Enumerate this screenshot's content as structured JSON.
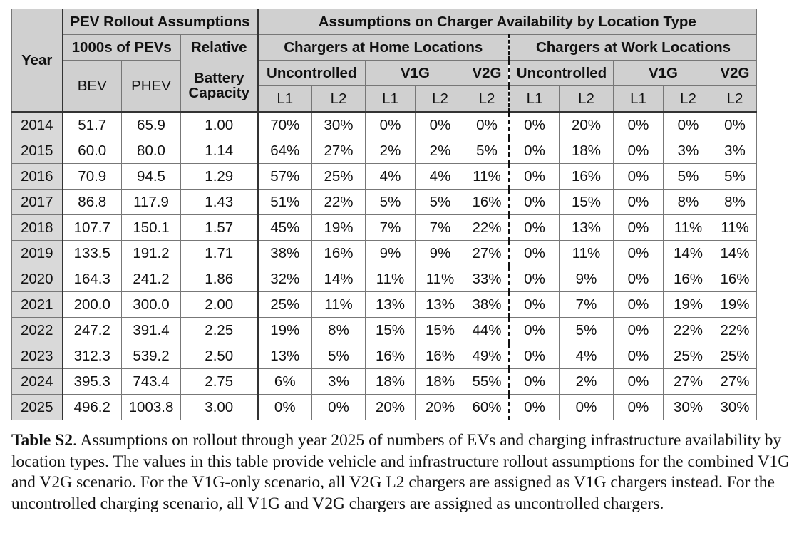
{
  "table": {
    "headers": {
      "year": "Year",
      "pev_group": "PEV Rollout Assumptions",
      "charger_group": "Assumptions on Charger Availability by Location Type",
      "thousands": "1000s of PEVs",
      "relative": "Relative",
      "battery": "Battery",
      "capacity": "Capacity",
      "bev": "BEV",
      "phev": "PHEV",
      "home": "Chargers at Home Locations",
      "work": "Chargers at Work Locations",
      "uncontrolled": "Uncontrolled",
      "v1g": "V1G",
      "v2g": "V2G",
      "l1": "L1",
      "l2": "L2"
    },
    "rows": [
      [
        "2014",
        "51.7",
        "65.9",
        "1.00",
        "70%",
        "30%",
        "0%",
        "0%",
        "0%",
        "0%",
        "20%",
        "0%",
        "0%",
        "0%"
      ],
      [
        "2015",
        "60.0",
        "80.0",
        "1.14",
        "64%",
        "27%",
        "2%",
        "2%",
        "5%",
        "0%",
        "18%",
        "0%",
        "3%",
        "3%"
      ],
      [
        "2016",
        "70.9",
        "94.5",
        "1.29",
        "57%",
        "25%",
        "4%",
        "4%",
        "11%",
        "0%",
        "16%",
        "0%",
        "5%",
        "5%"
      ],
      [
        "2017",
        "86.8",
        "117.9",
        "1.43",
        "51%",
        "22%",
        "5%",
        "5%",
        "16%",
        "0%",
        "15%",
        "0%",
        "8%",
        "8%"
      ],
      [
        "2018",
        "107.7",
        "150.1",
        "1.57",
        "45%",
        "19%",
        "7%",
        "7%",
        "22%",
        "0%",
        "13%",
        "0%",
        "11%",
        "11%"
      ],
      [
        "2019",
        "133.5",
        "191.2",
        "1.71",
        "38%",
        "16%",
        "9%",
        "9%",
        "27%",
        "0%",
        "11%",
        "0%",
        "14%",
        "14%"
      ],
      [
        "2020",
        "164.3",
        "241.2",
        "1.86",
        "32%",
        "14%",
        "11%",
        "11%",
        "33%",
        "0%",
        "9%",
        "0%",
        "16%",
        "16%"
      ],
      [
        "2021",
        "200.0",
        "300.0",
        "2.00",
        "25%",
        "11%",
        "13%",
        "13%",
        "38%",
        "0%",
        "7%",
        "0%",
        "19%",
        "19%"
      ],
      [
        "2022",
        "247.2",
        "391.4",
        "2.25",
        "19%",
        "8%",
        "15%",
        "15%",
        "44%",
        "0%",
        "5%",
        "0%",
        "22%",
        "22%"
      ],
      [
        "2023",
        "312.3",
        "539.2",
        "2.50",
        "13%",
        "5%",
        "16%",
        "16%",
        "49%",
        "0%",
        "4%",
        "0%",
        "25%",
        "25%"
      ],
      [
        "2024",
        "395.3",
        "743.4",
        "2.75",
        "6%",
        "3%",
        "18%",
        "18%",
        "55%",
        "0%",
        "2%",
        "0%",
        "27%",
        "27%"
      ],
      [
        "2025",
        "496.2",
        "1003.8",
        "3.00",
        "0%",
        "0%",
        "20%",
        "20%",
        "60%",
        "0%",
        "0%",
        "0%",
        "30%",
        "30%"
      ]
    ]
  },
  "caption": {
    "label": "Table S2",
    "text": ". Assumptions on rollout through year 2025 of numbers of EVs and charging infrastructure availability by location types. The values in this table provide vehicle and infrastructure rollout assumptions for the combined V1G and V2G scenario. For the V1G-only scenario, all V2G L2 chargers are assigned as V1G chargers instead. For the uncontrolled charging scenario, all V1G and V2G chargers are assigned as uncontrolled chargers."
  }
}
